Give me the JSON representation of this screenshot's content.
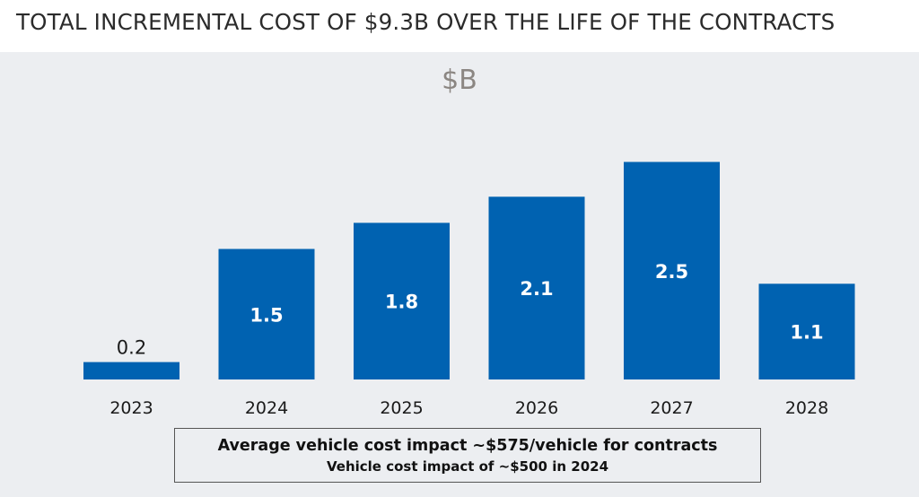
{
  "header": {
    "title": "TOTAL INCREMENTAL COST OF $9.3B OVER THE LIFE OF THE CONTRACTS"
  },
  "chart_data": {
    "type": "bar",
    "title": "TOTAL INCREMENTAL COST OF $9.3B OVER THE LIFE OF THE CONTRACTS",
    "unit_label": "$B",
    "xlabel": "",
    "ylabel": "$B",
    "categories": [
      "2023",
      "2024",
      "2025",
      "2026",
      "2027",
      "2028"
    ],
    "values": [
      0.2,
      1.5,
      1.8,
      2.1,
      2.5,
      1.1
    ],
    "labels": [
      "0.2",
      "1.5",
      "1.8",
      "2.1",
      "2.5",
      "1.1"
    ],
    "ylim": [
      0,
      3
    ],
    "grid": false,
    "legend": "none",
    "bar_color": "#0062b1",
    "label_color_inside": "#ffffff",
    "label_color_outside": "#1a1a1a"
  },
  "note": {
    "line1": "Average vehicle cost impact ~$575/vehicle for contracts",
    "line2": "Vehicle cost impact of ~$500 in 2024"
  }
}
